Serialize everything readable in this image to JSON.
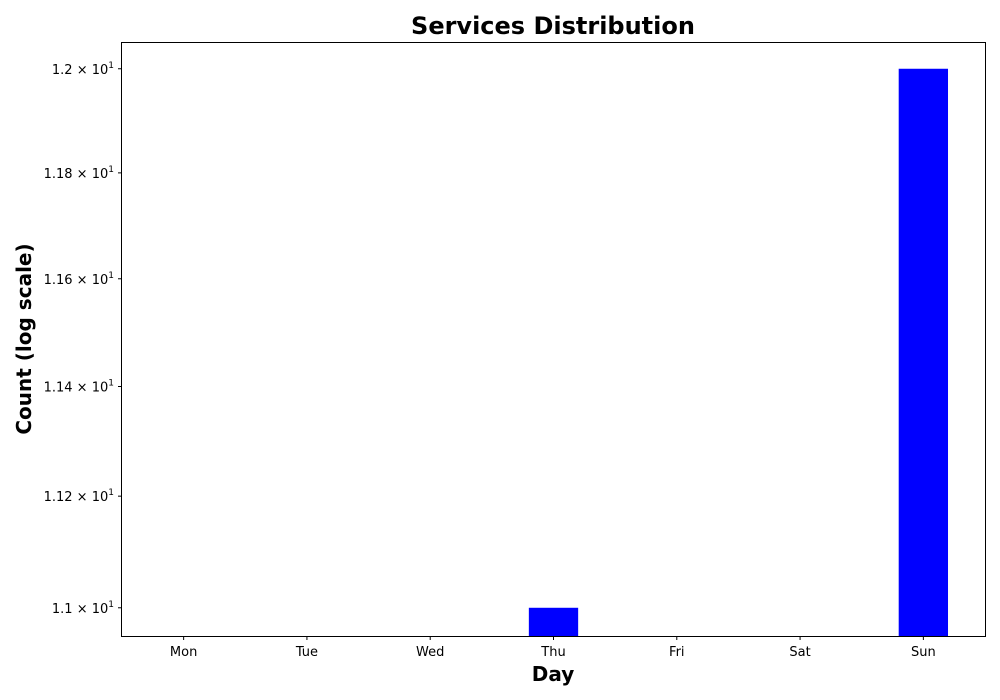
{
  "chart_data": {
    "type": "bar",
    "title": "Services Distribution",
    "xlabel": "Day",
    "ylabel": "Count (log scale)",
    "yscale": "log",
    "categories": [
      "Mon",
      "Tue",
      "Wed",
      "Thu",
      "Fri",
      "Sat",
      "Sun"
    ],
    "values": [
      null,
      null,
      null,
      11,
      null,
      null,
      12
    ],
    "ylim": [
      10.95,
      12.05
    ],
    "yticks": [
      {
        "value": 11.0,
        "mantissa": "1.1"
      },
      {
        "value": 11.2,
        "mantissa": "1.12"
      },
      {
        "value": 11.4,
        "mantissa": "1.14"
      },
      {
        "value": 11.6,
        "mantissa": "1.16"
      },
      {
        "value": 11.8,
        "mantissa": "1.18"
      },
      {
        "value": 12.0,
        "mantissa": "1.2"
      }
    ],
    "tick_base": "10",
    "tick_exponent": "1",
    "bar_color": "#0000ff",
    "grid": false
  }
}
